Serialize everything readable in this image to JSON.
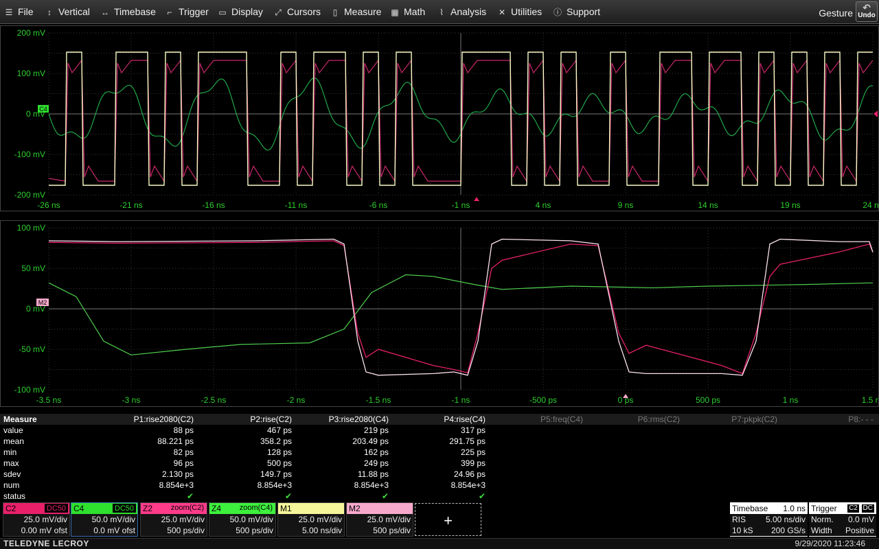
{
  "menu": {
    "items": [
      {
        "label": "File",
        "icon": "hamburger-icon"
      },
      {
        "label": "Vertical",
        "icon": "vertical-arrows-icon"
      },
      {
        "label": "Timebase",
        "icon": "horizontal-arrows-icon"
      },
      {
        "label": "Trigger",
        "icon": "trigger-icon"
      },
      {
        "label": "Display",
        "icon": "display-icon"
      },
      {
        "label": "Cursors",
        "icon": "cursor-icon"
      },
      {
        "label": "Measure",
        "icon": "measure-icon"
      },
      {
        "label": "Math",
        "icon": "calculator-icon"
      },
      {
        "label": "Analysis",
        "icon": "analysis-icon"
      },
      {
        "label": "Utilities",
        "icon": "tools-icon"
      },
      {
        "label": "Support",
        "icon": "info-icon"
      }
    ],
    "gesture_label": "Gesture",
    "undo_label": "Undo"
  },
  "top_graph": {
    "y_labels": [
      "200 mV",
      "100 mV",
      "0 mV",
      "-100 mV",
      "-200 mV"
    ],
    "x_labels": [
      "-26 ns",
      "-21 ns",
      "-16 ns",
      "-11 ns",
      "-6 ns",
      "-1 ns",
      "4 ns",
      "9 ns",
      "14 ns",
      "19 ns",
      "24 ns"
    ],
    "channel_tag": "C4"
  },
  "bottom_graph": {
    "y_labels": [
      "100 mV",
      "50 mV",
      "0 mV",
      "-50 mV",
      "-100 mV"
    ],
    "x_labels": [
      "-3.5 ns",
      "-3 ns",
      "-2.5 ns",
      "-2 ns",
      "-1.5 ns",
      "-1 ns",
      "-500 ps",
      "0 ps",
      "500 ps",
      "1 ns",
      "1.5 ns"
    ],
    "channel_tag": "M2"
  },
  "measure": {
    "title": "Measure",
    "params": [
      "P1:rise2080(C2)",
      "P2:rise(C2)",
      "P3:rise2080(C4)",
      "P4:rise(C4)",
      "P5:freq(C4)",
      "P6:rms(C2)",
      "P7:pkpk(C2)",
      "P8:- - -"
    ],
    "rows": [
      {
        "label": "value",
        "vals": [
          "88 ps",
          "467 ps",
          "219 ps",
          "317 ps"
        ]
      },
      {
        "label": "mean",
        "vals": [
          "88.221 ps",
          "358.2 ps",
          "203.49 ps",
          "291.75 ps"
        ]
      },
      {
        "label": "min",
        "vals": [
          "82 ps",
          "128 ps",
          "162 ps",
          "225 ps"
        ]
      },
      {
        "label": "max",
        "vals": [
          "96 ps",
          "500 ps",
          "249 ps",
          "399 ps"
        ]
      },
      {
        "label": "sdev",
        "vals": [
          "2.130 ps",
          "149.7 ps",
          "11.88 ps",
          "24.96 ps"
        ]
      },
      {
        "label": "num",
        "vals": [
          "8.854e+3",
          "8.854e+3",
          "8.854e+3",
          "8.854e+3"
        ]
      },
      {
        "label": "status",
        "vals": [
          "✔",
          "✔",
          "✔",
          "✔"
        ]
      }
    ]
  },
  "descriptors": [
    {
      "name": "C2",
      "tag": "DC50",
      "line1": "25.0 mV/div",
      "line2": "0.00 mV ofst",
      "color": "#e8206a"
    },
    {
      "name": "C4",
      "tag": "DC50",
      "line1": "50.0 mV/div",
      "line2": "0.0 mV ofst",
      "color": "#2ee02e"
    },
    {
      "name": "Z2",
      "tag": "zoom(C2)",
      "line1": "25.0 mV/div",
      "line2": "500 ps/div",
      "color": "#ff3b8a"
    },
    {
      "name": "Z4",
      "tag": "zoom(C4)",
      "line1": "50.0 mV/div",
      "line2": "500 ps/div",
      "color": "#3df03d"
    },
    {
      "name": "M1",
      "tag": "",
      "line1": "25.0 mV/div",
      "line2": "5.00 ns/div",
      "color": "#f5f59a"
    },
    {
      "name": "M2",
      "tag": "",
      "line1": "25.0 mV/div",
      "line2": "500 ps/div",
      "color": "#f7a9cc"
    }
  ],
  "add_label": "+",
  "timebase": {
    "title": "Timebase",
    "delay": "1.0 ns",
    "mode": "RIS",
    "scale": "5.00 ns/div",
    "samples": "10 kS",
    "rate": "200 GS/s"
  },
  "trigger": {
    "title": "Trigger",
    "source": "C2",
    "coupling": "DC",
    "mode": "Norm.",
    "level": "0.0 mV",
    "type": "Width",
    "slope": "Positive"
  },
  "status": {
    "brand": "TELEDYNE LECROY",
    "datetime": "9/29/2020 11:23:46"
  },
  "colors": {
    "grid": "#3a3a3a",
    "axis_green": "#2ed02e",
    "c2_pink": "#e8206a",
    "c4_green": "#2ee02e",
    "m1_yellow": "#fbfbc8"
  }
}
